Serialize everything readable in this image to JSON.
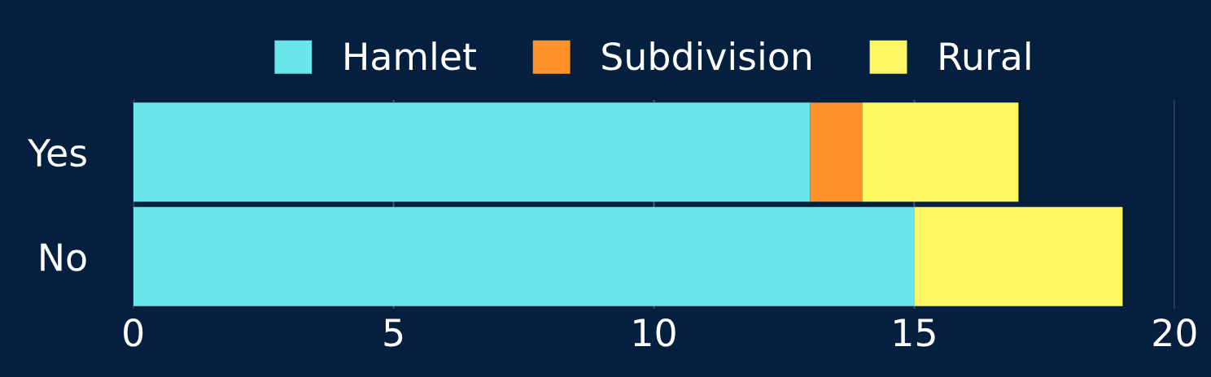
{
  "chart_data": {
    "type": "bar",
    "orientation": "horizontal",
    "stacked": true,
    "categories": [
      "Yes",
      "No"
    ],
    "series": [
      {
        "name": "Hamlet",
        "color": "#6ae5e8",
        "values": [
          13,
          15
        ]
      },
      {
        "name": "Subdivision",
        "color": "#ff922b",
        "values": [
          1,
          0
        ]
      },
      {
        "name": "Rural",
        "color": "#fff764",
        "values": [
          3,
          4
        ]
      }
    ],
    "xlim": [
      0,
      20
    ],
    "xticks": [
      0,
      5,
      10,
      15,
      20
    ],
    "grid": "x",
    "legend": "top"
  }
}
